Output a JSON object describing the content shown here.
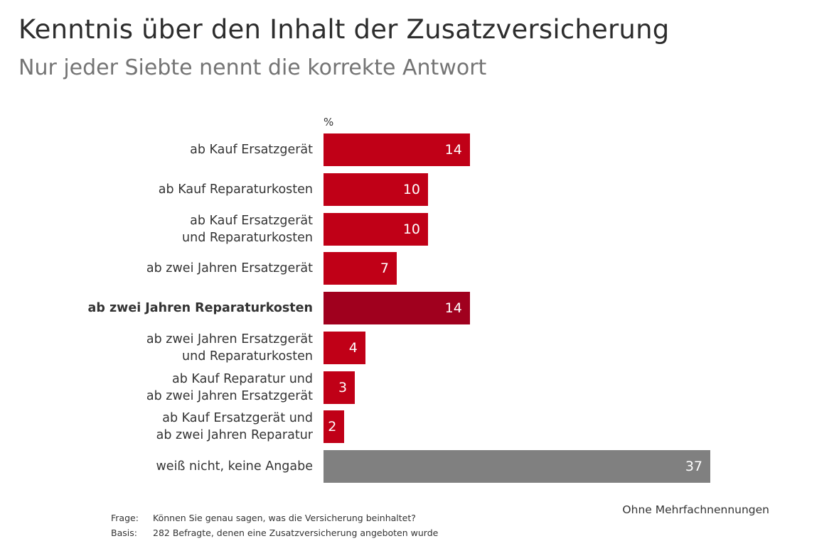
{
  "header": {
    "title": "Kenntnis über den Inhalt der Zusatzversicherung",
    "subtitle": "Nur jeder Siebte nennt die korrekte Antwort"
  },
  "colors": {
    "bar": "#C00017",
    "highlight": "#A0001E",
    "neutral": "#808080"
  },
  "chart_data": {
    "type": "bar",
    "orientation": "horizontal",
    "title": "Kenntnis über den Inhalt der Zusatzversicherung",
    "subtitle": "Nur jeder Siebte nennt die korrekte Antwort",
    "unit_label": "%",
    "xlabel": "",
    "ylabel": "",
    "xlim": [
      0,
      37
    ],
    "grid": false,
    "legend": "none",
    "categories": [
      "ab Kauf Ersatzgerät",
      "ab Kauf Reparaturkosten",
      "ab Kauf Ersatzgerät\nund Reparaturkosten",
      "ab zwei Jahren Ersatzgerät",
      "ab zwei Jahren Reparaturkosten",
      "ab zwei Jahren Ersatzgerät\nund Reparaturkosten",
      "ab Kauf Reparatur und\nab zwei Jahren Ersatzgerät",
      "ab Kauf Ersatzgerät und\nab zwei Jahren Reparatur",
      "weiß nicht, keine Angabe"
    ],
    "values": [
      14,
      10,
      10,
      7,
      14,
      4,
      3,
      2,
      37
    ],
    "styles": [
      "bar",
      "bar",
      "bar",
      "bar",
      "highlight",
      "bar",
      "bar",
      "bar",
      "neutral"
    ],
    "highlighted_category": "ab zwei Jahren Reparaturkosten"
  },
  "notes": {
    "right": "Ohne Mehrfachnennungen",
    "question_key": "Frage:",
    "question": "Können Sie genau sagen, was die Versicherung beinhaltet?",
    "basis_key": "Basis:",
    "basis": "282 Befragte, denen eine Zusatzversicherung angeboten wurde"
  }
}
